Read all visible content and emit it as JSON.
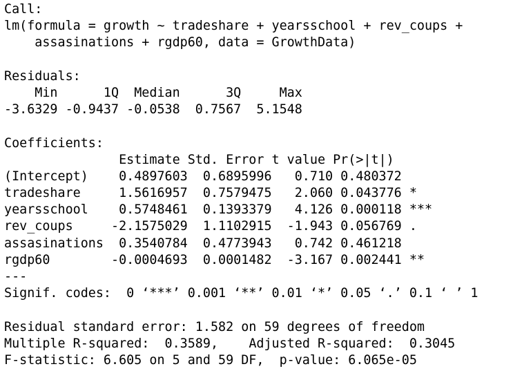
{
  "output": {
    "lines": [
      "Call:",
      "lm(formula = growth ~ tradeshare + yearsschool + rev_coups +",
      "    assasinations + rgdp60, data = GrowthData)",
      "",
      "Residuals:",
      "    Min      1Q  Median      3Q     Max ",
      "-3.6329 -0.9437 -0.0538  0.7567  5.1548 ",
      "",
      "Coefficients:",
      "               Estimate Std. Error t value Pr(>|t|)    ",
      "(Intercept)    0.4897603  0.6895996   0.710 0.480372    ",
      "tradeshare     1.5616957  0.7579475   2.060 0.043776 *  ",
      "yearsschool    0.5748461  0.1393379   4.126 0.000118 ***",
      "rev_coups     -2.1575029  1.1102915  -1.943 0.056769 .  ",
      "assasinations  0.3540784  0.4773943   0.742 0.461218    ",
      "rgdp60        -0.0004693  0.0001482  -3.167 0.002441 ** ",
      "---",
      "Signif. codes:  0 ‘***’ 0.001 ‘**’ 0.01 ‘*’ 0.05 ‘.’ 0.1 ‘ ’ 1",
      "",
      "Residual standard error: 1.582 on 59 degrees of freedom",
      "Multiple R-squared:  0.3589,\tAdjusted R-squared:  0.3045 ",
      "F-statistic: 6.605 on 5 and 59 DF,  p-value: 6.065e-05"
    ]
  }
}
